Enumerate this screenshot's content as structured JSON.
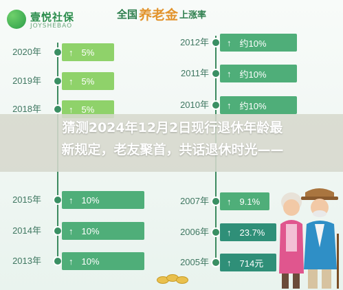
{
  "brand": {
    "name": "壹悦社保",
    "sub": "JOYSHEBAO"
  },
  "headline": {
    "part1": "全国",
    "part2": "养老金",
    "part3": "上涨率"
  },
  "left_rows": [
    {
      "year": "2020年",
      "value": "5%",
      "color": "#8fd26a"
    },
    {
      "year": "2019年",
      "value": "5%",
      "color": "#8fd26a"
    },
    {
      "year": "2018年",
      "value": "5%",
      "color": "#8fd26a"
    },
    {
      "year": "2015年",
      "value": "10%",
      "color": "#4fae79"
    },
    {
      "year": "2014年",
      "value": "10%",
      "color": "#4fae79"
    },
    {
      "year": "2013年",
      "value": "10%",
      "color": "#4fae79"
    }
  ],
  "right_rows": [
    {
      "year": "2012年",
      "value": "约10%",
      "color": "#4fae79"
    },
    {
      "year": "2011年",
      "value": "约10%",
      "color": "#4fae79"
    },
    {
      "year": "2010年",
      "value": "约10%",
      "color": "#4fae79"
    },
    {
      "year": "2007年",
      "value": "9.1%",
      "color": "#4fae79"
    },
    {
      "year": "2006年",
      "value": "23.7%",
      "color": "#2f8f78"
    },
    {
      "year": "2005年",
      "value": "714元",
      "color": "#2f8f78"
    }
  ],
  "banner": {
    "line1": "猜测2024年12月2日现行退休年龄最",
    "line2": "新规定，老友聚首，共话退休时光——"
  },
  "arrow_icon": "↑"
}
